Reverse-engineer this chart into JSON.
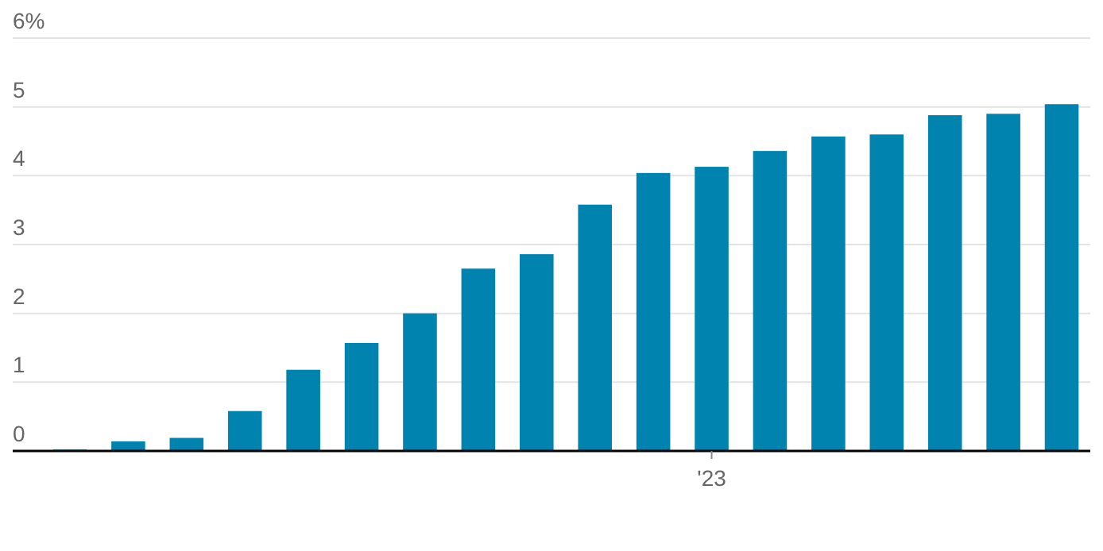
{
  "chart_data": {
    "type": "bar",
    "categories": [
      null,
      null,
      null,
      null,
      null,
      null,
      null,
      null,
      null,
      null,
      null,
      "'23",
      null,
      null,
      null,
      null,
      null,
      null
    ],
    "values": [
      0.02,
      0.14,
      0.19,
      0.58,
      1.18,
      1.57,
      2.0,
      2.65,
      2.86,
      3.58,
      4.04,
      4.13,
      4.36,
      4.57,
      4.6,
      4.88,
      4.9,
      5.04
    ],
    "color": "#0083ae",
    "ylim": [
      0,
      6
    ],
    "yticks": [
      0,
      1,
      2,
      3,
      4,
      5,
      {
        "value": 6,
        "label": "6%"
      }
    ],
    "grid": "y"
  }
}
